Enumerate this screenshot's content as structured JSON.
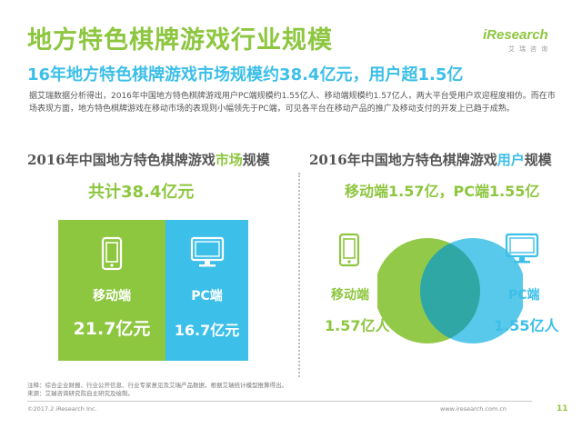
{
  "title": "地方特色棋牌游戏行业规模",
  "subtitle": "16年地方特色棋牌游戏市场规模约38.4亿元，用户超1.5亿",
  "logo": {
    "main": "iResearch",
    "sub": "艾瑞咨询"
  },
  "description": "据艾瑞数据分析得出，2016年中国地方特色棋牌游戏用户PC端规模约1.55亿人、移动端规模约1.57亿人，两大平台受用户欢迎程度相仿。而在市场表现方面，地方特色棋牌游戏在移动市场的表现则小幅领先于PC端，可见各平台在移动产品的推广及移动支付的开发上已趋于成熟。",
  "left_panel": {
    "title_pre": "2016年中国地方特色棋牌游戏",
    "title_hl": "市场",
    "title_post": "规模",
    "total": "共计38.4亿元"
  },
  "right_panel": {
    "title_pre": "2016年中国地方特色棋牌游戏",
    "title_hl": "用户",
    "title_post": "规模",
    "summary": "移动端1.57亿，PC端1.55亿"
  },
  "chart_data": [
    {
      "type": "bar",
      "title": "2016年中国地方特色棋牌游戏市场规模",
      "total_label": "共计38.4亿元",
      "categories": [
        "移动端",
        "PC端"
      ],
      "values": [
        21.7,
        16.7
      ],
      "value_labels": [
        "21.7亿元",
        "16.7亿元"
      ],
      "unit": "亿元",
      "colors": [
        "#8dc63f",
        "#3cbfe8"
      ]
    },
    {
      "type": "venn",
      "title": "2016年中国地方特色棋牌游戏用户规模",
      "categories": [
        "移动端",
        "PC端"
      ],
      "values": [
        1.57,
        1.55
      ],
      "value_labels": [
        "1.57亿人",
        "1.55亿人"
      ],
      "unit": "亿人",
      "colors": [
        "#8dc63f",
        "#3cbfe8"
      ]
    }
  ],
  "notes": {
    "line1": "注释：综合企业财报、行业公开信息、行业专家意见及艾瑞产品数据，根据艾瑞统计模型推算得出。",
    "line2": "来源：艾瑞咨询研究院自主研究及绘制。"
  },
  "footer": {
    "copyright": "©2017.2 iResearch Inc.",
    "website": "www.iresearch.com.cn",
    "page": "11"
  },
  "icons": {
    "mobile": "smartphone-icon",
    "pc": "monitor-icon"
  }
}
